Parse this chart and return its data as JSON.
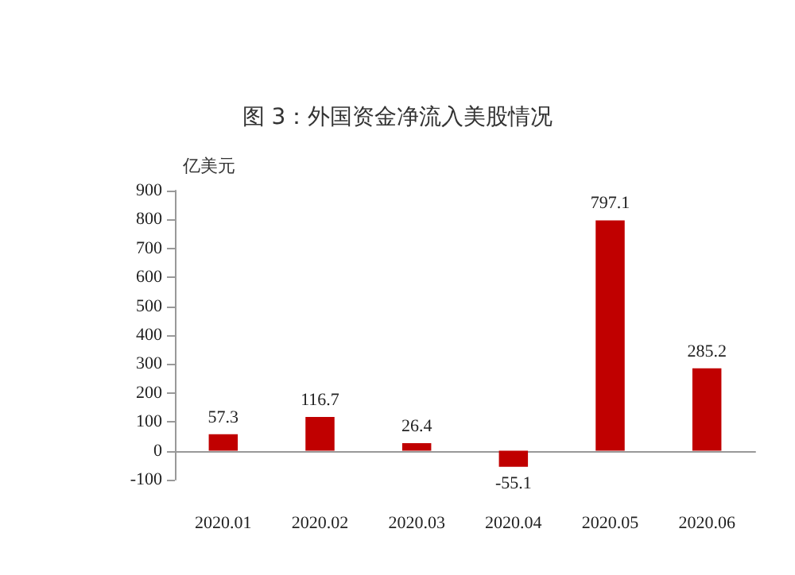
{
  "chart_data": {
    "type": "bar",
    "title": "图 3：外国资金净流入美股情况",
    "ylabel": "亿美元",
    "categories": [
      "2020.01",
      "2020.02",
      "2020.03",
      "2020.04",
      "2020.05",
      "2020.06"
    ],
    "values": [
      57.3,
      116.7,
      26.4,
      -55.1,
      797.1,
      285.2
    ],
    "color": "#c00000",
    "ylim": [
      -100,
      900
    ],
    "yticks": [
      -100,
      0,
      100,
      200,
      300,
      400,
      500,
      600,
      700,
      800,
      900
    ],
    "data_labels": true
  }
}
